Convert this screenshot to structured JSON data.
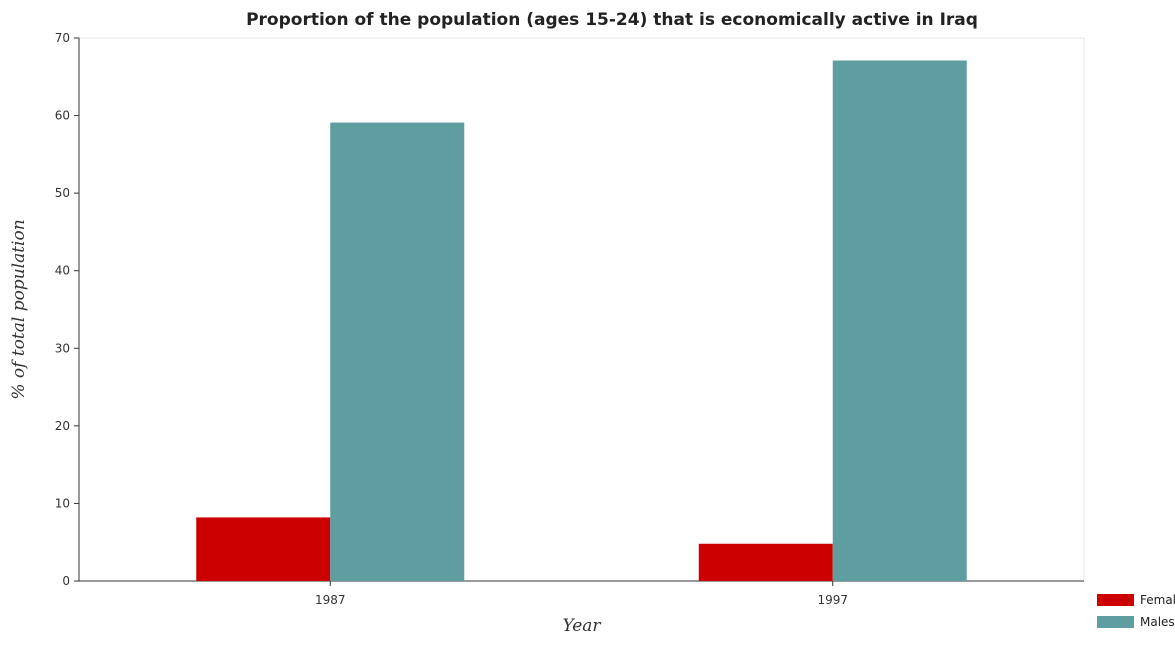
{
  "chart_data": {
    "type": "bar",
    "title": "Proportion of the population (ages 15-24) that is economically active in Iraq",
    "xlabel": "Year",
    "ylabel": "% of total population",
    "categories": [
      "1987",
      "1997"
    ],
    "series": [
      {
        "name": "Females",
        "color": "#cc0000",
        "values": [
          8.2,
          4.8
        ]
      },
      {
        "name": "Males",
        "color": "#5f9ea0",
        "values": [
          59.1,
          67.1
        ]
      }
    ],
    "ylim": [
      0,
      70
    ],
    "yticks": [
      0,
      10,
      20,
      30,
      40,
      50,
      60,
      70
    ],
    "legend_position": "bottom-right",
    "grid": false
  }
}
